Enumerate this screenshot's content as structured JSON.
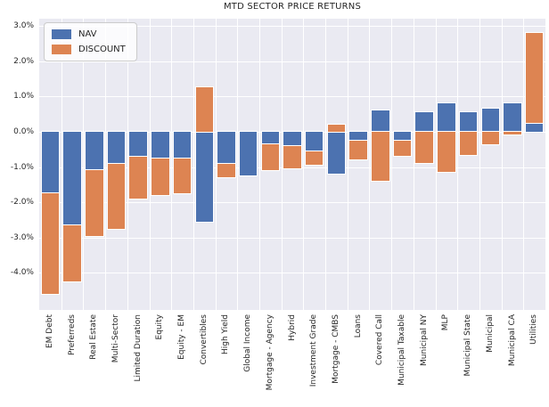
{
  "chart_data": {
    "type": "bar",
    "stacked": true,
    "title": "MTD SECTOR PRICE RETURNS",
    "xlabel": "",
    "ylabel": "",
    "grid": true,
    "legend_position": "upper left",
    "background_color": "#EAEAF2",
    "grid_color": "#FFFFFF",
    "text_color": "#262626",
    "ylim": [
      -5.05,
      3.2
    ],
    "yticks": [
      3,
      2,
      1,
      0,
      -1,
      -2,
      -3,
      -4
    ],
    "ytick_labels": [
      "3.0%",
      "2.0%",
      "1.0%",
      "0.0%",
      "-1.0%",
      "-2.0%",
      "-3.0%",
      "-4.0%"
    ],
    "categories": [
      "EM Debt",
      "Preferreds",
      "Real Estate",
      "Multi-Sector",
      "Limited Duration",
      "Equity",
      "Equity - EM",
      "Convertibles",
      "High Yield",
      "Global Income",
      "Mortgage - Agency",
      "Hybrid",
      "Investment Grade",
      "Mortgage - CMBS",
      "Loans",
      "Covered Call",
      "Municipal Taxable",
      "Municipal NY",
      "MLP",
      "Municipal State",
      "Municipal",
      "Municipal CA",
      "Utilities"
    ],
    "series": [
      {
        "name": "NAV",
        "color": "#4C72B0",
        "values": [
          -1.75,
          -2.65,
          -1.1,
          -0.9,
          -0.7,
          -0.75,
          -0.75,
          -2.55,
          -0.9,
          -1.25,
          -0.35,
          -0.4,
          -0.55,
          -1.2,
          -0.25,
          0.6,
          -0.25,
          0.55,
          0.8,
          0.55,
          0.65,
          0.8,
          0.25
        ]
      },
      {
        "name": "DISCOUNT",
        "color": "#DD8452",
        "values": [
          -2.85,
          -1.6,
          -1.85,
          -1.85,
          -1.2,
          -1.05,
          -1.0,
          1.25,
          -0.4,
          0.0,
          -0.75,
          -0.65,
          -0.4,
          0.2,
          -0.55,
          -1.4,
          -0.45,
          -0.9,
          -1.15,
          -0.65,
          -0.35,
          -0.07,
          2.55
        ]
      }
    ]
  }
}
